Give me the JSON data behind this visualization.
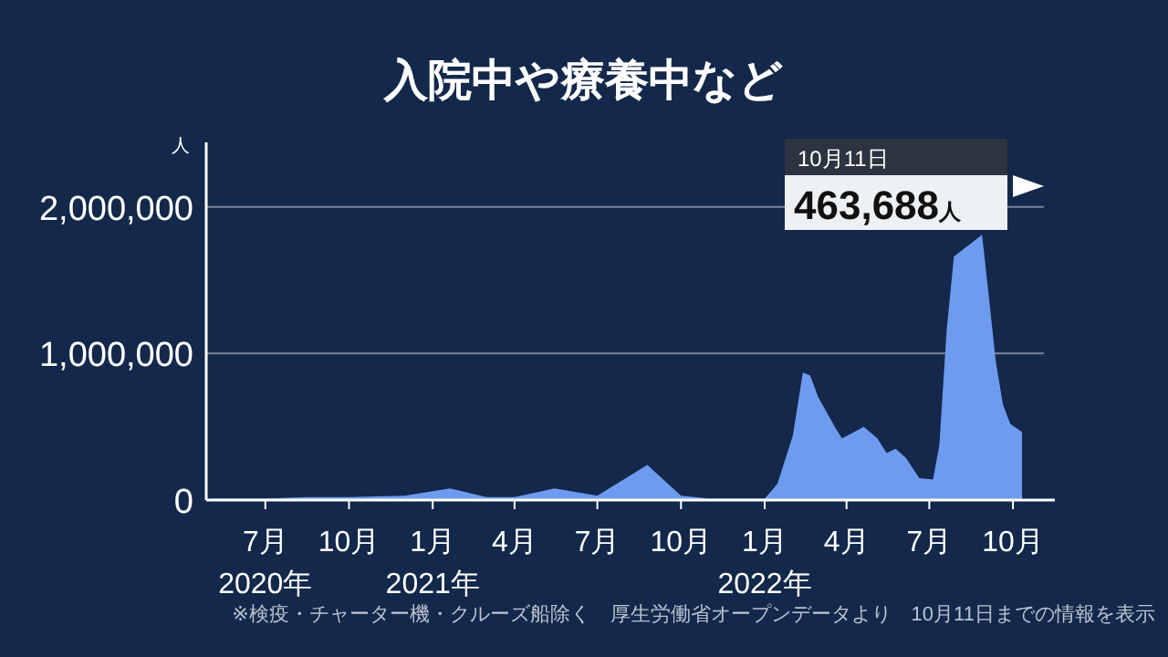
{
  "chart_data": {
    "type": "area",
    "title": "入院中や療養中など",
    "ylabel": "人",
    "color": "#6e9bf0",
    "x": [
      "2020-05-01",
      "2020-07-01",
      "2020-08-15",
      "2020-10-01",
      "2020-12-01",
      "2021-01-20",
      "2021-03-01",
      "2021-04-01",
      "2021-05-15",
      "2021-07-01",
      "2021-08-25",
      "2021-10-01",
      "2021-11-01",
      "2022-01-01",
      "2022-01-15",
      "2022-02-01",
      "2022-02-12",
      "2022-02-20",
      "2022-03-01",
      "2022-03-20",
      "2022-03-27",
      "2022-04-20",
      "2022-05-05",
      "2022-05-15",
      "2022-05-25",
      "2022-06-05",
      "2022-06-20",
      "2022-07-05",
      "2022-07-12",
      "2022-07-20",
      "2022-07-28",
      "2022-08-05",
      "2022-08-20",
      "2022-08-28",
      "2022-09-05",
      "2022-09-12",
      "2022-09-20",
      "2022-09-28",
      "2022-10-11"
    ],
    "values": [
      10000,
      10000,
      20000,
      20000,
      30000,
      80000,
      20000,
      20000,
      80000,
      30000,
      240000,
      30000,
      10000,
      10000,
      110000,
      440000,
      870000,
      850000,
      700000,
      490000,
      420000,
      500000,
      420000,
      320000,
      350000,
      290000,
      150000,
      140000,
      370000,
      1150000,
      1660000,
      null,
      null,
      1810000,
      1360000,
      950000,
      650000,
      520000,
      463688
    ],
    "xlim": [
      "2020-04-27",
      "2022-11-04"
    ],
    "xticks": [
      {
        "value": "2020-07-01",
        "label": "7月\n2020年"
      },
      {
        "value": "2020-10-01",
        "label": "10月"
      },
      {
        "value": "2021-01-01",
        "label": "1月\n2021年"
      },
      {
        "value": "2021-04-01",
        "label": "4月"
      },
      {
        "value": "2021-07-01",
        "label": "7月"
      },
      {
        "value": "2021-10-01",
        "label": "10月"
      },
      {
        "value": "2022-01-01",
        "label": "1月\n2022年"
      },
      {
        "value": "2022-04-01",
        "label": "4月"
      },
      {
        "value": "2022-07-01",
        "label": "7月"
      },
      {
        "value": "2022-10-01",
        "label": "10月"
      }
    ],
    "ylim": [
      0,
      2440000
    ],
    "yticks": [
      0,
      {
        "value": 1000000,
        "label": "1,000,000"
      },
      {
        "value": 2000000,
        "label": "2,000,000"
      }
    ],
    "grid": "y",
    "annotations": [
      "10月11日\n463,688人",
      "※検疫・チャーター機・クルーズ船除く　厚生労働省オープンデータより　10月11日までの情報を表示"
    ]
  }
}
